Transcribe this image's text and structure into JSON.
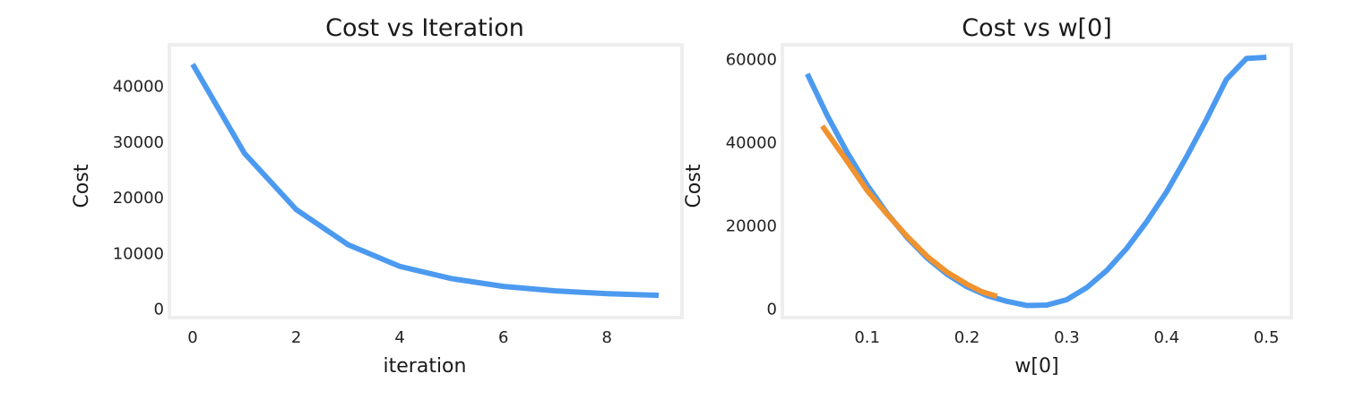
{
  "chart_data": [
    {
      "type": "line",
      "title": "Cost vs Iteration",
      "xlabel": "iteration",
      "ylabel": "Cost",
      "xlim": [
        -0.45,
        9.45
      ],
      "ylim": [
        -1500,
        47500
      ],
      "xticks": [
        0,
        2,
        4,
        6,
        8
      ],
      "yticks": [
        0,
        10000,
        20000,
        30000,
        40000
      ],
      "grid": false,
      "series": [
        {
          "color": "#4c9af0",
          "x": [
            0,
            1,
            2,
            3,
            4,
            5,
            6,
            7,
            8,
            9
          ],
          "y": [
            44000,
            28000,
            17900,
            11600,
            7700,
            5500,
            4100,
            3300,
            2800,
            2500
          ]
        }
      ]
    },
    {
      "type": "line",
      "title": "Cost vs w[0]",
      "xlabel": "w[0]",
      "ylabel": "Cost",
      "xlim": [
        0.015,
        0.525
      ],
      "ylim": [
        -2000,
        63500
      ],
      "xticks": [
        0.1,
        0.2,
        0.3,
        0.4,
        0.5
      ],
      "yticks": [
        0,
        20000,
        40000,
        60000
      ],
      "grid": false,
      "series": [
        {
          "color": "#4c9af0",
          "x": [
            0.04,
            0.06,
            0.08,
            0.1,
            0.12,
            0.14,
            0.16,
            0.18,
            0.2,
            0.22,
            0.24,
            0.26,
            0.28,
            0.3,
            0.32,
            0.34,
            0.36,
            0.38,
            0.4,
            0.42,
            0.44,
            0.46,
            0.48,
            0.5
          ],
          "y": [
            56500,
            46500,
            37600,
            29800,
            23000,
            17200,
            12300,
            8400,
            5400,
            3300,
            1900,
            900,
            1000,
            2300,
            5200,
            9300,
            14600,
            21000,
            28200,
            36600,
            45600,
            55200,
            60200,
            60500
          ]
        },
        {
          "color": "#f0922d",
          "x": [
            0.055,
            0.08,
            0.1,
            0.12,
            0.14,
            0.16,
            0.18,
            0.2,
            0.215,
            0.23
          ],
          "y": [
            44000,
            35500,
            28500,
            22800,
            17500,
            12700,
            8900,
            6000,
            4200,
            3100
          ]
        }
      ]
    }
  ]
}
